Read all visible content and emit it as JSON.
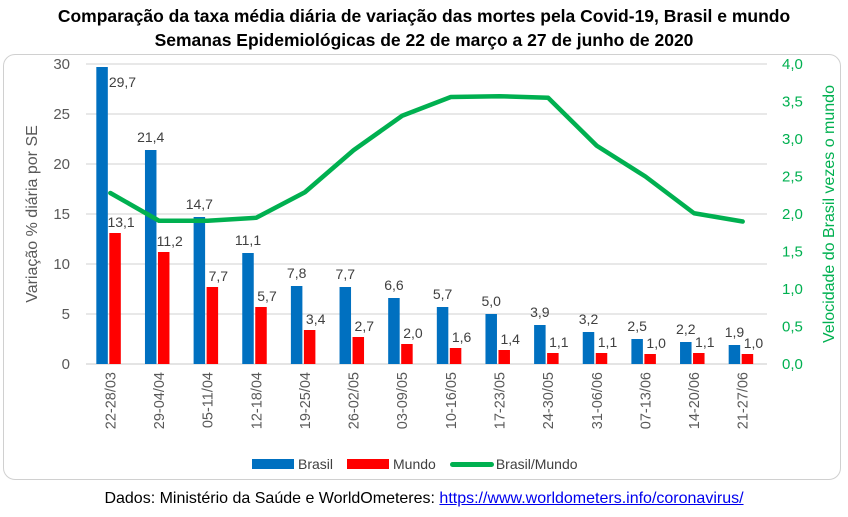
{
  "chart_data": {
    "type": "bar+line",
    "title": "Comparação da taxa média diária de variação das mortes pela Covid-19, Brasil e mundo",
    "subtitle": "Semanas Epidemiológicas de 22 de março a 27 de junho de 2020",
    "categories": [
      "22-28/03",
      "29-04/04",
      "05-11/04",
      "12-18/04",
      "19-25/04",
      "26-02/05",
      "03-09/05",
      "10-16/05",
      "17-23/05",
      "24-30/05",
      "31-06/06",
      "07-13/06",
      "14-20/06",
      "21-27/06"
    ],
    "ylabel": "Variação % diária por SE",
    "ylabel_right": "Velocidade do Brasil vezes o mundo",
    "ylim": [
      0,
      30
    ],
    "ylim_right": [
      0,
      4
    ],
    "yticks": [
      "0",
      "5",
      "10",
      "15",
      "20",
      "25",
      "30"
    ],
    "yticks_right": [
      "0,0",
      "0,5",
      "1,0",
      "1,5",
      "2,0",
      "2,5",
      "3,0",
      "3,5",
      "4,0"
    ],
    "grid": true,
    "legend_position": "bottom",
    "series": [
      {
        "name": "Brasil",
        "type": "bar",
        "axis": "left",
        "color": "#0070c0",
        "values": [
          29.7,
          21.4,
          14.7,
          11.1,
          7.8,
          7.7,
          6.6,
          5.7,
          5.0,
          3.9,
          3.2,
          2.5,
          2.2,
          1.9
        ],
        "labels": [
          "29,7",
          "21,4",
          "14,7",
          "11,1",
          "7,8",
          "7,7",
          "6,6",
          "5,7",
          "5,0",
          "3,9",
          "3,2",
          "2,5",
          "2,2",
          "1,9"
        ]
      },
      {
        "name": "Mundo",
        "type": "bar",
        "axis": "left",
        "color": "#ff0000",
        "values": [
          13.1,
          11.2,
          7.7,
          5.7,
          3.4,
          2.7,
          2.0,
          1.6,
          1.4,
          1.1,
          1.1,
          1.0,
          1.1,
          1.0
        ],
        "labels": [
          "13,1",
          "11,2",
          "7,7",
          "5,7",
          "3,4",
          "2,7",
          "2,0",
          "1,6",
          "1,4",
          "1,1",
          "1,1",
          "1,0",
          "1,1",
          "1,0"
        ]
      },
      {
        "name": "Brasil/Mundo",
        "type": "line",
        "axis": "right",
        "color": "#00b050",
        "values": [
          2.28,
          1.91,
          1.91,
          1.95,
          2.29,
          2.85,
          3.31,
          3.56,
          3.57,
          3.55,
          2.91,
          2.5,
          2.01,
          1.9
        ]
      }
    ]
  },
  "footer": {
    "prefix": "Dados: Ministério da Saúde e WorldOmeteres: ",
    "link_text": "https://www.worldometers.info/coronavirus/"
  },
  "colors": {
    "axis_text": "#595959",
    "right_axis": "#00b050",
    "gridline": "#d9d9d9"
  }
}
